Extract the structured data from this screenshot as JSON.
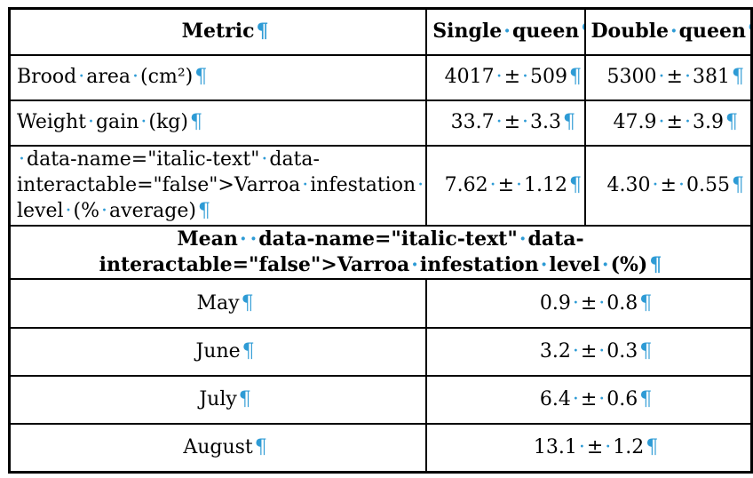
{
  "colors": {
    "formatting_mark": "#2E9BD5",
    "text": "#000000",
    "border": "#000000",
    "background": "#ffffff"
  },
  "marks": {
    "space_dot": "·",
    "pilcrow": "¶"
  },
  "table": {
    "header": {
      "metric": "Metric",
      "single_queen": "Single queen",
      "double_queen": "Double queen"
    },
    "metric_rows": [
      {
        "metric": "Brood area (cm²)",
        "single_queen": "4017 ± 509",
        "double_queen": "5300 ± 381"
      },
      {
        "metric": "Weight gain (kg)",
        "single_queen": "33.7 ± 3.3",
        "double_queen": "47.9 ± 3.9"
      },
      {
        "metric": "*Varroa* infestation \nlevel (% average)",
        "single_queen": "7.62 ± 1.12",
        "double_queen": "4.30 ± 0.55"
      }
    ],
    "section_header": "Mean *Varroa* infestation level (%)",
    "monthly_rows": [
      {
        "month": "May",
        "value": "0.9 ± 0.8"
      },
      {
        "month": "June",
        "value": "3.2 ± 0.3"
      },
      {
        "month": "July",
        "value": "6.4 ± 0.6"
      },
      {
        "month": "August",
        "value": "13.1 ± 1.2"
      }
    ]
  }
}
